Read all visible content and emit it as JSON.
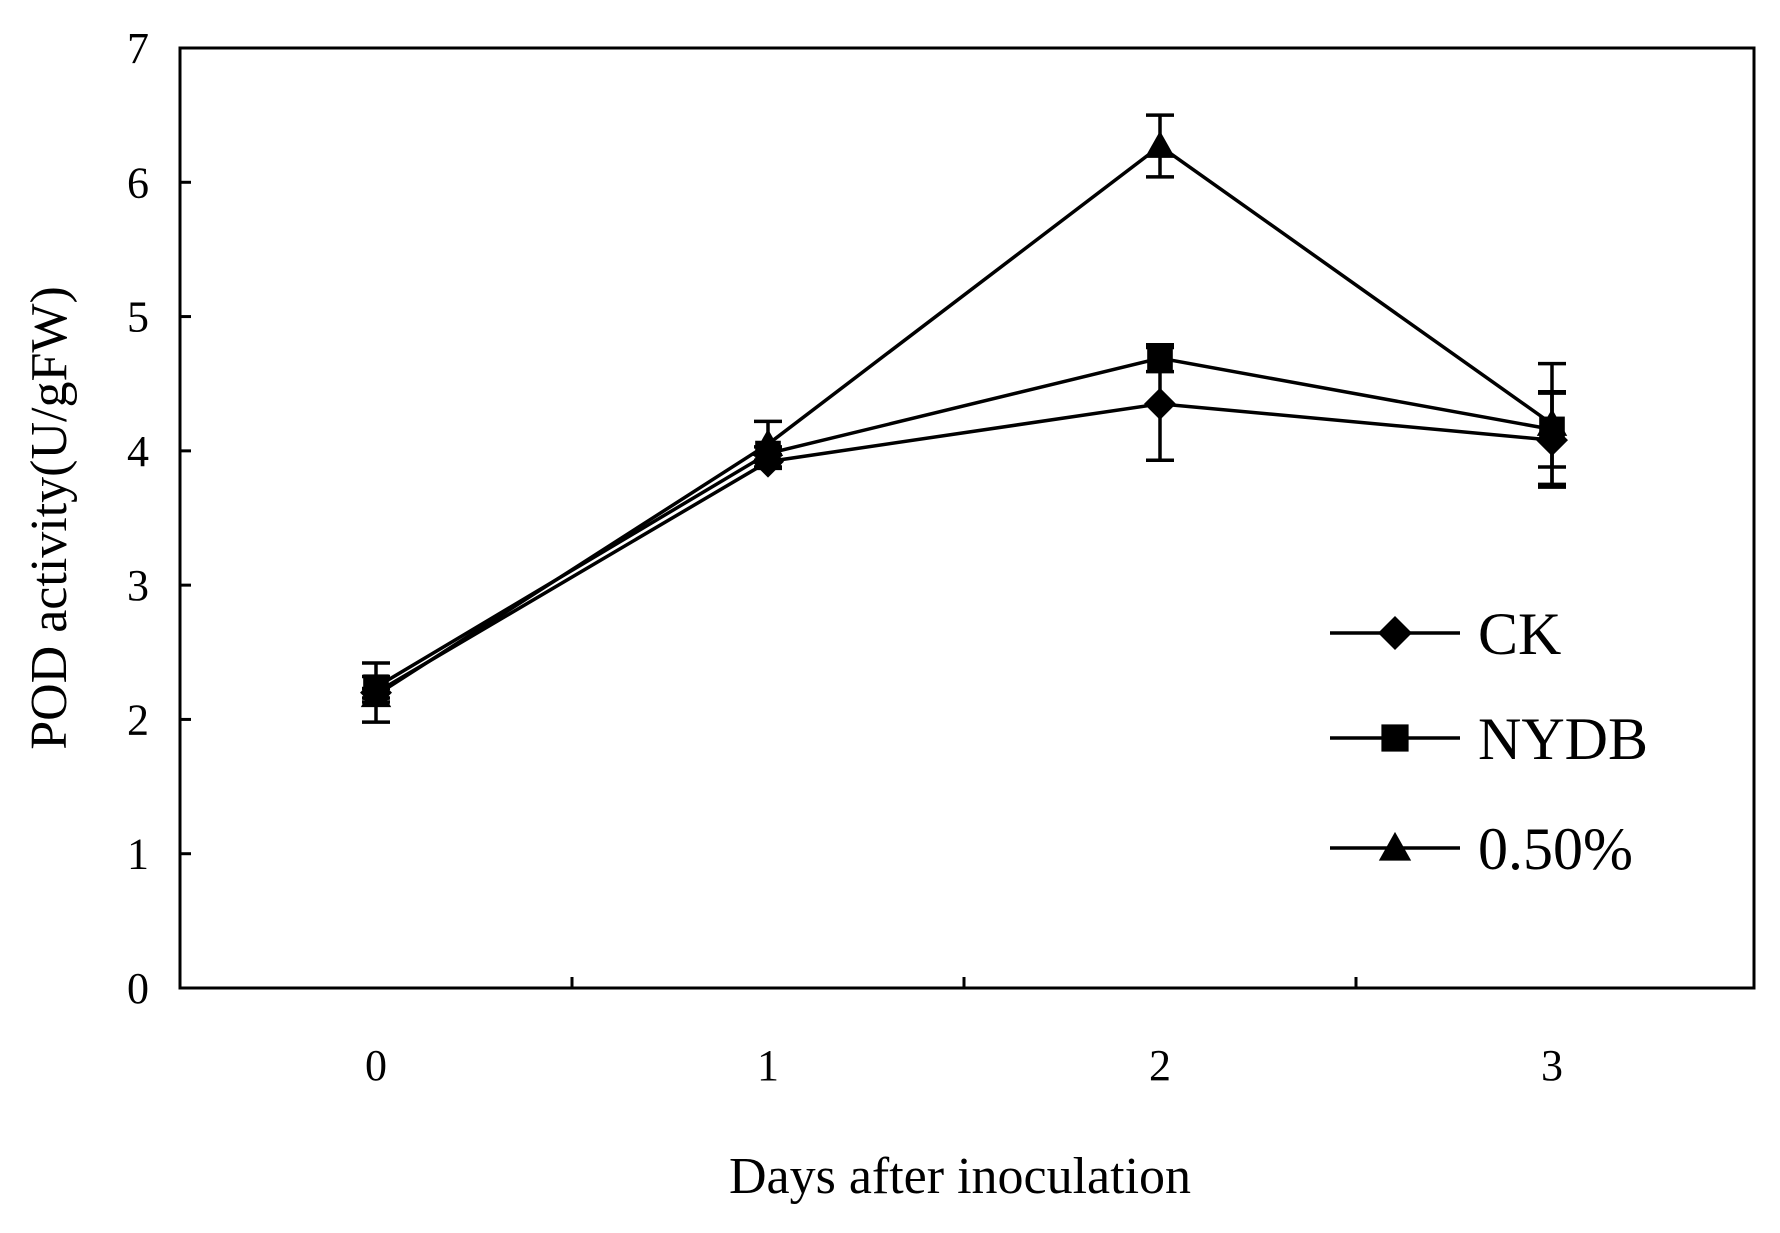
{
  "chart_data": {
    "type": "line",
    "title": "",
    "xlabel": "Days after inoculation",
    "ylabel": "POD activity(U/gFW)",
    "categories": [
      "0",
      "1",
      "2",
      "3"
    ],
    "x": [
      0,
      1,
      2,
      3
    ],
    "ylim": [
      0,
      7
    ],
    "yticks": [
      0,
      1,
      2,
      3,
      4,
      5,
      6,
      7
    ],
    "ytick_labels": [
      "0",
      "1",
      "2",
      "3",
      "4",
      "5",
      "6",
      "7"
    ],
    "grid": false,
    "legend_position": "right",
    "series": [
      {
        "name": "CK",
        "marker": "diamond",
        "values": [
          2.2,
          3.92,
          4.35,
          4.08
        ],
        "errors": [
          0.22,
          0.05,
          0.42,
          0.35
        ]
      },
      {
        "name": "NYDB",
        "marker": "square",
        "values": [
          2.24,
          3.98,
          4.69,
          4.16
        ],
        "errors": [
          0.08,
          0.05,
          0.1,
          0.28
        ]
      },
      {
        "name": "0.50%",
        "marker": "triangle",
        "values": [
          2.18,
          4.05,
          6.27,
          4.2
        ],
        "errors": [
          0.05,
          0.17,
          0.23,
          0.45
        ]
      }
    ]
  }
}
